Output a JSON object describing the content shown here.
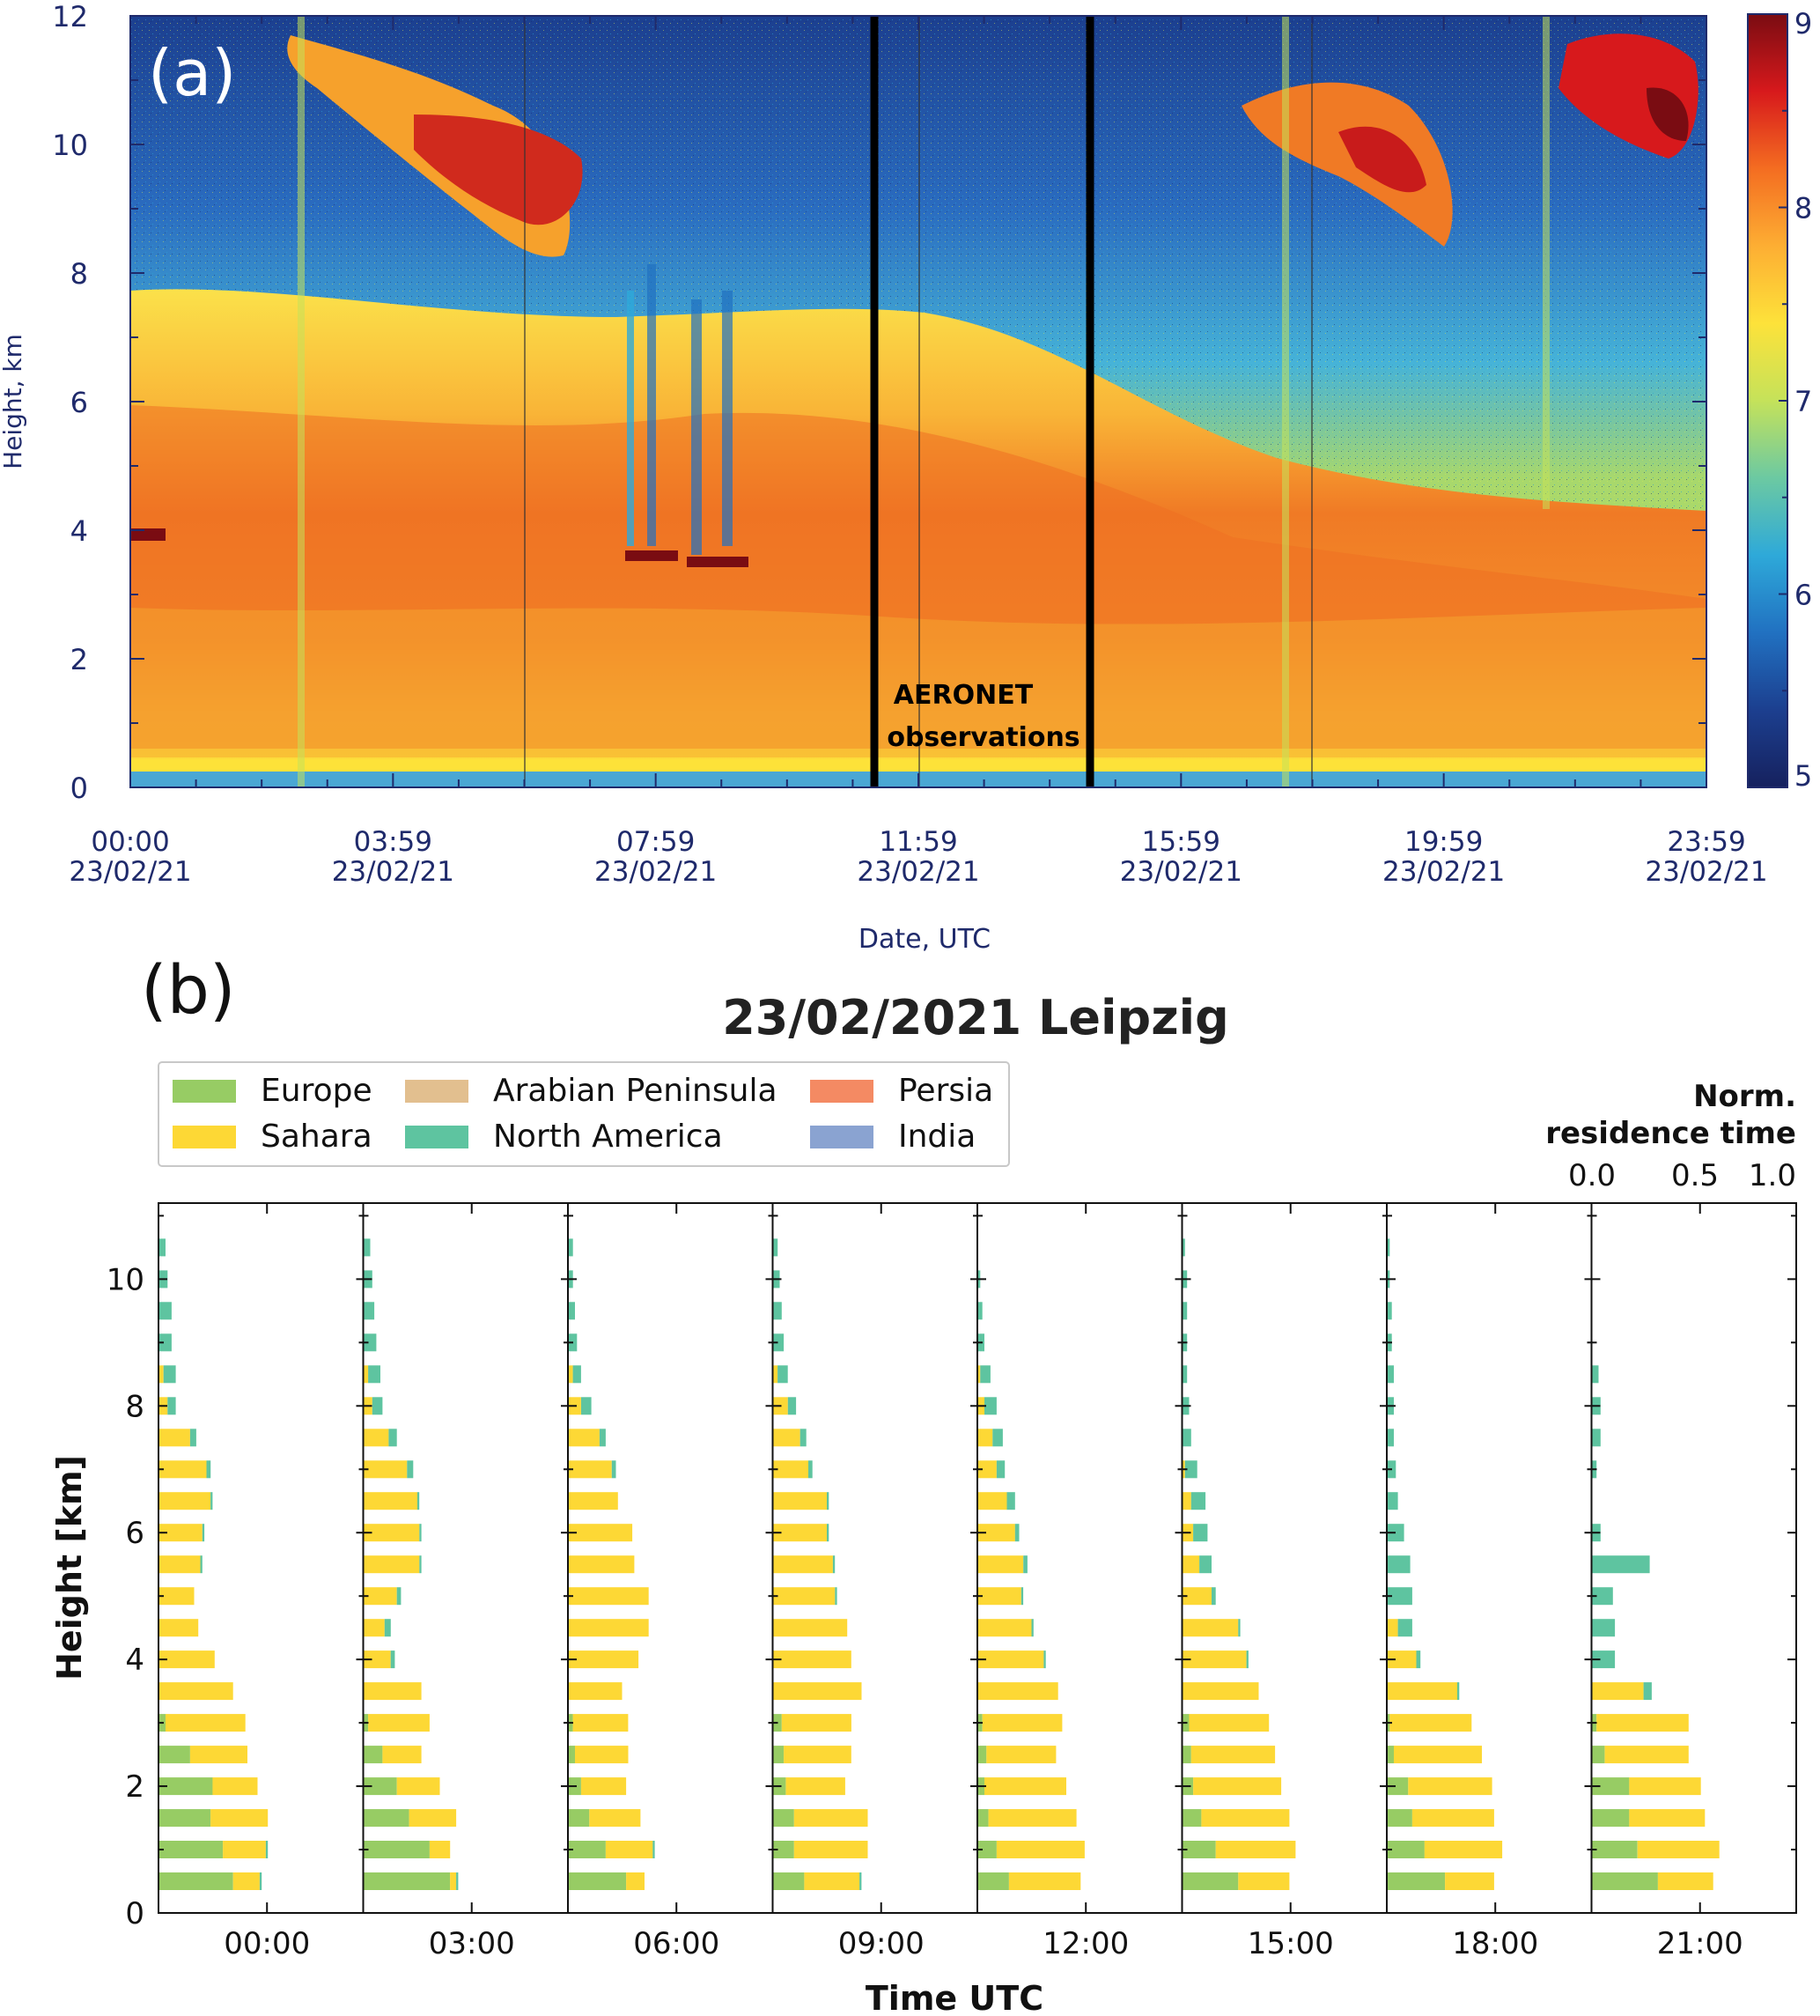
{
  "panel_a": {
    "label": "(a)",
    "colorbar": {
      "ticks": [
        "9",
        "8",
        "7",
        "6",
        "5"
      ],
      "colors": [
        "#7a0c12",
        "#d7191c",
        "#f46d21",
        "#fdae33",
        "#fde23a",
        "#c5e25a",
        "#6cc9a2",
        "#2ea9d9",
        "#2171c1",
        "#1c3f8f",
        "#16215e"
      ]
    },
    "annotation_line1": "AERONET",
    "annotation_line2": "observations"
  },
  "panel_b": {
    "label": "(b)",
    "legend": {
      "items": [
        {
          "name": "Europe",
          "color": "#97cc64"
        },
        {
          "name": "Sahara",
          "color": "#fdd835"
        },
        {
          "name": "Arabian Peninsula",
          "color": "#e2bf8f"
        },
        {
          "name": "North America",
          "color": "#5ec4a0"
        },
        {
          "name": "Persia",
          "color": "#f48a63"
        },
        {
          "name": "India",
          "color": "#8aa3d1"
        }
      ]
    },
    "norm_label_line1": "Norm.",
    "norm_label_line2": "residence time",
    "norm_ticks": [
      "0.0",
      "0.5",
      "1.0"
    ]
  },
  "chart_data": [
    {
      "type": "heatmap",
      "title": "",
      "ylabel": "Height, km",
      "xlabel": "Date, UTC",
      "ylim": [
        0,
        12
      ],
      "yticks": [
        "0",
        "2",
        "4",
        "6",
        "8",
        "10",
        "12"
      ],
      "x_tick_labels": [
        {
          "time": "00:00",
          "date": "23/02/21"
        },
        {
          "time": "03:59",
          "date": "23/02/21"
        },
        {
          "time": "07:59",
          "date": "23/02/21"
        },
        {
          "time": "11:59",
          "date": "23/02/21"
        },
        {
          "time": "15:59",
          "date": "23/02/21"
        },
        {
          "time": "19:59",
          "date": "23/02/21"
        },
        {
          "time": "23:59",
          "date": "23/02/21"
        }
      ],
      "colorbar_range": [
        5,
        9
      ],
      "marked_interval_hours": [
        11.2,
        14.5
      ]
    },
    {
      "type": "bar",
      "orientation": "horizontal-stacked",
      "title": "23/02/2021 Leipzig",
      "xlabel": "Time UTC",
      "ylabel": "Height [km]",
      "ylim": [
        0,
        11.2
      ],
      "yticks": [
        "0",
        "2",
        "4",
        "6",
        "8",
        "10"
      ],
      "heights_km": [
        0.5,
        1.0,
        1.5,
        2.0,
        2.5,
        3.0,
        3.5,
        4.0,
        4.5,
        5.0,
        5.5,
        6.0,
        6.5,
        7.0,
        7.5,
        8.0,
        8.5,
        9.0,
        9.5,
        10.0,
        10.5
      ],
      "stack_order": [
        "Europe",
        "Sahara",
        "North America"
      ],
      "times": [
        {
          "label": "00:00",
          "europe": [
            0.36,
            0.31,
            0.25,
            0.26,
            0.15,
            0.03,
            0.0,
            0.0,
            0.0,
            0.0,
            0.0,
            0.0,
            0.0,
            0.0,
            0.0,
            0.0,
            0.0,
            0.0,
            0.0,
            0.0,
            0.0
          ],
          "sahara": [
            0.13,
            0.21,
            0.28,
            0.22,
            0.28,
            0.39,
            0.36,
            0.27,
            0.19,
            0.17,
            0.2,
            0.21,
            0.25,
            0.23,
            0.15,
            0.04,
            0.02,
            0.0,
            0.0,
            0.0,
            0.0
          ],
          "namerica": [
            0.01,
            0.01,
            0.0,
            0.0,
            0.0,
            0.0,
            0.0,
            0.0,
            0.0,
            0.0,
            0.01,
            0.01,
            0.01,
            0.02,
            0.03,
            0.04,
            0.06,
            0.06,
            0.06,
            0.04,
            0.03
          ]
        },
        {
          "label": "03:00",
          "europe": [
            0.42,
            0.32,
            0.22,
            0.16,
            0.09,
            0.02,
            0.0,
            0.0,
            0.0,
            0.0,
            0.0,
            0.0,
            0.0,
            0.0,
            0.0,
            0.0,
            0.0,
            0.0,
            0.0,
            0.0,
            0.0
          ],
          "sahara": [
            0.03,
            0.1,
            0.23,
            0.21,
            0.19,
            0.3,
            0.28,
            0.13,
            0.1,
            0.16,
            0.27,
            0.27,
            0.26,
            0.21,
            0.12,
            0.04,
            0.02,
            0.0,
            0.0,
            0.0,
            0.0
          ],
          "namerica": [
            0.01,
            0.0,
            0.0,
            0.0,
            0.0,
            0.0,
            0.0,
            0.02,
            0.03,
            0.02,
            0.01,
            0.01,
            0.01,
            0.03,
            0.04,
            0.05,
            0.06,
            0.06,
            0.05,
            0.04,
            0.03
          ]
        },
        {
          "label": "06:00",
          "europe": [
            0.28,
            0.18,
            0.1,
            0.06,
            0.03,
            0.02,
            0.0,
            0.0,
            0.0,
            0.0,
            0.0,
            0.0,
            0.0,
            0.0,
            0.0,
            0.0,
            0.0,
            0.0,
            0.0,
            0.0,
            0.0
          ],
          "sahara": [
            0.09,
            0.23,
            0.25,
            0.22,
            0.26,
            0.27,
            0.26,
            0.34,
            0.39,
            0.39,
            0.32,
            0.31,
            0.24,
            0.21,
            0.15,
            0.06,
            0.02,
            0.0,
            0.0,
            0.0,
            0.0
          ],
          "namerica": [
            0.0,
            0.01,
            0.0,
            0.0,
            0.0,
            0.0,
            0.0,
            0.0,
            0.0,
            0.0,
            0.0,
            0.0,
            0.0,
            0.02,
            0.03,
            0.05,
            0.04,
            0.04,
            0.03,
            0.02,
            0.02
          ]
        },
        {
          "label": "09:00",
          "europe": [
            0.15,
            0.1,
            0.1,
            0.06,
            0.05,
            0.04,
            0.0,
            0.0,
            0.0,
            0.0,
            0.0,
            0.0,
            0.0,
            0.0,
            0.0,
            0.0,
            0.0,
            0.0,
            0.0,
            0.0,
            0.0
          ],
          "sahara": [
            0.27,
            0.36,
            0.36,
            0.29,
            0.33,
            0.34,
            0.43,
            0.38,
            0.36,
            0.3,
            0.29,
            0.26,
            0.26,
            0.17,
            0.13,
            0.07,
            0.02,
            0.0,
            0.0,
            0.0,
            0.0
          ],
          "namerica": [
            0.01,
            0.0,
            0.0,
            0.0,
            0.0,
            0.0,
            0.0,
            0.0,
            0.0,
            0.01,
            0.01,
            0.01,
            0.01,
            0.02,
            0.03,
            0.04,
            0.05,
            0.05,
            0.04,
            0.03,
            0.02
          ]
        },
        {
          "label": "12:00",
          "europe": [
            0.15,
            0.09,
            0.05,
            0.03,
            0.04,
            0.02,
            0.0,
            0.0,
            0.0,
            0.0,
            0.0,
            0.0,
            0.0,
            0.0,
            0.0,
            0.0,
            0.0,
            0.0,
            0.0,
            0.0,
            0.0
          ],
          "sahara": [
            0.35,
            0.43,
            0.43,
            0.4,
            0.34,
            0.39,
            0.39,
            0.32,
            0.26,
            0.21,
            0.22,
            0.18,
            0.14,
            0.09,
            0.07,
            0.03,
            0.01,
            0.0,
            0.0,
            0.0,
            0.0
          ],
          "namerica": [
            0.0,
            0.0,
            0.0,
            0.0,
            0.0,
            0.0,
            0.0,
            0.01,
            0.01,
            0.01,
            0.02,
            0.02,
            0.04,
            0.04,
            0.05,
            0.06,
            0.05,
            0.03,
            0.02,
            0.01,
            0.0
          ]
        },
        {
          "label": "15:00",
          "europe": [
            0.27,
            0.16,
            0.09,
            0.05,
            0.04,
            0.03,
            0.0,
            0.0,
            0.0,
            0.0,
            0.0,
            0.0,
            0.0,
            0.0,
            0.0,
            0.0,
            0.0,
            0.0,
            0.0,
            0.0,
            0.0
          ],
          "sahara": [
            0.25,
            0.39,
            0.43,
            0.43,
            0.41,
            0.39,
            0.37,
            0.31,
            0.27,
            0.14,
            0.08,
            0.05,
            0.04,
            0.01,
            0.0,
            0.0,
            0.0,
            0.0,
            0.0,
            0.0,
            0.0
          ],
          "namerica": [
            0.0,
            0.0,
            0.0,
            0.0,
            0.0,
            0.0,
            0.0,
            0.01,
            0.01,
            0.02,
            0.06,
            0.07,
            0.07,
            0.06,
            0.04,
            0.03,
            0.02,
            0.02,
            0.02,
            0.02,
            0.01
          ]
        },
        {
          "label": "18:00",
          "europe": [
            0.28,
            0.18,
            0.12,
            0.1,
            0.03,
            0.01,
            0.0,
            0.0,
            0.0,
            0.0,
            0.0,
            0.0,
            0.0,
            0.0,
            0.0,
            0.0,
            0.0,
            0.0,
            0.0,
            0.0,
            0.0
          ],
          "sahara": [
            0.24,
            0.38,
            0.4,
            0.41,
            0.43,
            0.4,
            0.34,
            0.14,
            0.05,
            0.0,
            0.0,
            0.0,
            0.0,
            0.0,
            0.0,
            0.0,
            0.0,
            0.0,
            0.0,
            0.0,
            0.0
          ],
          "namerica": [
            0.0,
            0.0,
            0.0,
            0.0,
            0.0,
            0.0,
            0.01,
            0.02,
            0.07,
            0.12,
            0.11,
            0.08,
            0.05,
            0.04,
            0.03,
            0.03,
            0.03,
            0.02,
            0.02,
            0.01,
            0.01
          ]
        },
        {
          "label": "21:00",
          "europe": [
            0.32,
            0.22,
            0.18,
            0.18,
            0.06,
            0.02,
            0.0,
            0.0,
            0.0,
            0.0,
            0.0,
            0.0,
            0.0,
            0.0,
            0.0,
            0.0,
            0.0,
            0.0,
            0.0,
            0.0,
            0.0
          ],
          "sahara": [
            0.27,
            0.4,
            0.37,
            0.35,
            0.41,
            0.45,
            0.25,
            0.0,
            0.0,
            0.0,
            0.0,
            0.0,
            0.0,
            0.0,
            0.0,
            0.0,
            0.0,
            0.0,
            0.0,
            0.0,
            0.0
          ],
          "namerica": [
            0.0,
            0.0,
            0.0,
            0.0,
            0.0,
            0.0,
            0.04,
            0.11,
            0.11,
            0.1,
            0.28,
            0.04,
            0.0,
            0.02,
            0.04,
            0.04,
            0.03,
            0.0,
            0.0,
            0.0,
            0.0
          ]
        }
      ]
    }
  ]
}
